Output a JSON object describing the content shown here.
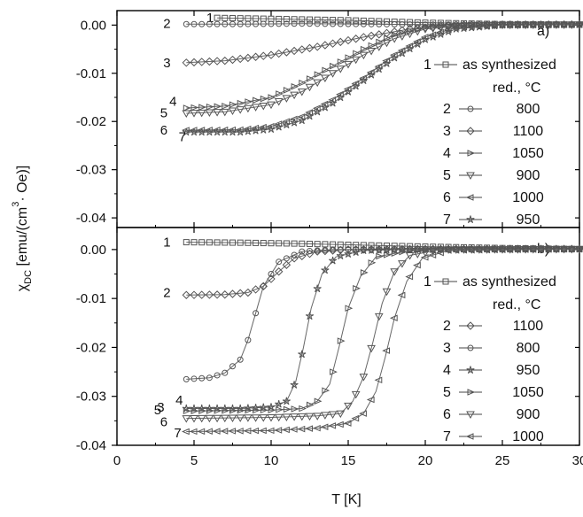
{
  "chart_data": [
    {
      "panel": "a)",
      "type": "line",
      "xlim": [
        0,
        30
      ],
      "ylim": [
        -0.042,
        0.003
      ],
      "x_ticks": [
        "0",
        "5",
        "10",
        "15",
        "20",
        "25",
        "30"
      ],
      "y_ticks": [
        {
          "v": 0.0,
          "label": "0.00"
        },
        {
          "v": -0.01,
          "label": "-0.01"
        },
        {
          "v": -0.02,
          "label": "-0.02"
        },
        {
          "v": -0.03,
          "label": "-0.03"
        },
        {
          "v": -0.04,
          "label": "-0.04"
        }
      ],
      "legend_header": "red., °C",
      "legend": [
        {
          "num": "1",
          "label": "as synthesized",
          "marker": "square"
        },
        {
          "num": "2",
          "label": "800",
          "marker": "circle"
        },
        {
          "num": "3",
          "label": "1100",
          "marker": "diamond"
        },
        {
          "num": "4",
          "label": "1050",
          "marker": "tri-right"
        },
        {
          "num": "5",
          "label": "900",
          "marker": "tri-down"
        },
        {
          "num": "6",
          "label": "1000",
          "marker": "tri-left"
        },
        {
          "num": "7",
          "label": "950",
          "marker": "star"
        }
      ],
      "series": [
        {
          "name": "1",
          "marker": "square",
          "label_at": [
            5.8,
            0.0015
          ],
          "points": [
            [
              6.5,
              0.0015
            ],
            [
              10,
              0.0013
            ],
            [
              15,
              0.001
            ],
            [
              20,
              0.0005
            ],
            [
              25,
              0.0002
            ],
            [
              30,
              0.0001
            ]
          ]
        },
        {
          "name": "2",
          "marker": "circle",
          "label_at": [
            3.0,
            0.0003
          ],
          "points": [
            [
              4.5,
              0.0002
            ],
            [
              8,
              0.0002
            ],
            [
              12,
              0.0003
            ],
            [
              16,
              0.0002
            ],
            [
              20,
              0.0001
            ],
            [
              25,
              0.0001
            ],
            [
              30,
              0.0001
            ]
          ]
        },
        {
          "name": "3",
          "marker": "diamond",
          "label_at": [
            3.0,
            -0.0078
          ],
          "points": [
            [
              4.5,
              -0.0078
            ],
            [
              7,
              -0.0074
            ],
            [
              10,
              -0.0062
            ],
            [
              13,
              -0.0045
            ],
            [
              16,
              -0.0025
            ],
            [
              19,
              -0.0008
            ],
            [
              22,
              0.0
            ],
            [
              25,
              0.0001
            ],
            [
              30,
              0.0001
            ]
          ]
        },
        {
          "name": "4",
          "marker": "tri-right",
          "label_at": [
            3.4,
            -0.0158
          ],
          "points": [
            [
              4.5,
              -0.0172
            ],
            [
              7,
              -0.0168
            ],
            [
              10,
              -0.015
            ],
            [
              12,
              -0.012
            ],
            [
              14,
              -0.0085
            ],
            [
              16,
              -0.005
            ],
            [
              18,
              -0.002
            ],
            [
              20,
              -0.0004
            ],
            [
              23,
              0.0
            ],
            [
              30,
              0.0001
            ]
          ]
        },
        {
          "name": "5",
          "marker": "tri-down",
          "label_at": [
            2.8,
            -0.0182
          ],
          "points": [
            [
              4.5,
              -0.0183
            ],
            [
              7,
              -0.018
            ],
            [
              10,
              -0.0165
            ],
            [
              12,
              -0.0138
            ],
            [
              14,
              -0.01
            ],
            [
              16,
              -0.0062
            ],
            [
              18,
              -0.0028
            ],
            [
              20,
              -0.0008
            ],
            [
              23,
              0.0
            ],
            [
              30,
              0.0001
            ]
          ]
        },
        {
          "name": "6",
          "marker": "tri-left",
          "label_at": [
            2.8,
            -0.0218
          ],
          "points": [
            [
              4.5,
              -0.0218
            ],
            [
              8,
              -0.0217
            ],
            [
              10,
              -0.021
            ],
            [
              12,
              -0.019
            ],
            [
              14,
              -0.0155
            ],
            [
              16,
              -0.011
            ],
            [
              18,
              -0.0062
            ],
            [
              20,
              -0.0025
            ],
            [
              22,
              -0.0005
            ],
            [
              25,
              0.0
            ],
            [
              30,
              0.0001
            ]
          ]
        },
        {
          "name": "7",
          "marker": "star",
          "label_at": [
            4.0,
            -0.0232
          ],
          "points": [
            [
              4.5,
              -0.0222
            ],
            [
              8,
              -0.0222
            ],
            [
              10,
              -0.0216
            ],
            [
              12,
              -0.0198
            ],
            [
              14,
              -0.0162
            ],
            [
              16,
              -0.0115
            ],
            [
              18,
              -0.0068
            ],
            [
              20,
              -0.003
            ],
            [
              22,
              -0.0008
            ],
            [
              25,
              0.0
            ],
            [
              30,
              0.0001
            ]
          ]
        }
      ]
    },
    {
      "panel": "b)",
      "type": "line",
      "xlim": [
        0,
        30
      ],
      "ylim": [
        -0.04,
        0.0045
      ],
      "x_ticks": [
        "0",
        "5",
        "10",
        "15",
        "20",
        "25",
        "30"
      ],
      "y_ticks": [
        {
          "v": 0.0,
          "label": "0.00"
        },
        {
          "v": -0.01,
          "label": "-0.01"
        },
        {
          "v": -0.02,
          "label": "-0.02"
        },
        {
          "v": -0.03,
          "label": "-0.03"
        },
        {
          "v": -0.04,
          "label": "-0.04"
        }
      ],
      "legend_header": "red., °C",
      "legend": [
        {
          "num": "1",
          "label": "as synthesized",
          "marker": "square"
        },
        {
          "num": "2",
          "label": "1100",
          "marker": "diamond"
        },
        {
          "num": "3",
          "label": "800",
          "marker": "circle"
        },
        {
          "num": "4",
          "label": "950",
          "marker": "star"
        },
        {
          "num": "5",
          "label": "1050",
          "marker": "tri-right"
        },
        {
          "num": "6",
          "label": "900",
          "marker": "tri-down"
        },
        {
          "num": "7",
          "label": "1000",
          "marker": "tri-left"
        }
      ],
      "series": [
        {
          "name": "1",
          "marker": "square",
          "label_at": [
            3.0,
            0.0015
          ],
          "points": [
            [
              4.5,
              0.0015
            ],
            [
              8,
              0.0014
            ],
            [
              12,
              0.0012
            ],
            [
              16,
              0.0009
            ],
            [
              20,
              0.0006
            ],
            [
              25,
              0.0003
            ],
            [
              30,
              0.0001
            ]
          ]
        },
        {
          "name": "2",
          "marker": "diamond",
          "label_at": [
            3.0,
            -0.0088
          ],
          "points": [
            [
              4.5,
              -0.0093
            ],
            [
              7,
              -0.0092
            ],
            [
              8.5,
              -0.0088
            ],
            [
              9.5,
              -0.0075
            ],
            [
              10.5,
              -0.0045
            ],
            [
              11.5,
              -0.0018
            ],
            [
              13,
              -0.0004
            ],
            [
              15,
              0.0
            ],
            [
              20,
              0.0001
            ],
            [
              30,
              0.0001
            ]
          ]
        },
        {
          "name": "3",
          "marker": "circle",
          "label_at": [
            2.6,
            -0.0322
          ],
          "points": [
            [
              4.5,
              -0.0265
            ],
            [
              6,
              -0.0262
            ],
            [
              7,
              -0.0252
            ],
            [
              8,
              -0.0225
            ],
            [
              8.5,
              -0.0185
            ],
            [
              9,
              -0.013
            ],
            [
              9.5,
              -0.0075
            ],
            [
              10.5,
              -0.0025
            ],
            [
              12,
              -0.0004
            ],
            [
              14,
              0.0
            ],
            [
              20,
              0.0001
            ],
            [
              30,
              0.0001
            ]
          ]
        },
        {
          "name": "4",
          "marker": "star",
          "label_at": [
            3.8,
            -0.0308
          ],
          "points": [
            [
              4.5,
              -0.0325
            ],
            [
              8,
              -0.0325
            ],
            [
              10,
              -0.0322
            ],
            [
              11,
              -0.031
            ],
            [
              11.6,
              -0.027
            ],
            [
              12.1,
              -0.02
            ],
            [
              12.6,
              -0.012
            ],
            [
              13.3,
              -0.005
            ],
            [
              14.2,
              -0.0015
            ],
            [
              16,
              -0.0002
            ],
            [
              20,
              0.0001
            ],
            [
              30,
              0.0001
            ]
          ]
        },
        {
          "name": "5",
          "marker": "tri-right",
          "label_at": [
            2.4,
            -0.0328
          ],
          "points": [
            [
              4.5,
              -0.033
            ],
            [
              10,
              -0.0328
            ],
            [
              12,
              -0.0325
            ],
            [
              13,
              -0.031
            ],
            [
              13.8,
              -0.0275
            ],
            [
              14.4,
              -0.02
            ],
            [
              15,
              -0.012
            ],
            [
              15.8,
              -0.0055
            ],
            [
              16.8,
              -0.0015
            ],
            [
              19,
              -0.0002
            ],
            [
              22,
              0.0001
            ],
            [
              30,
              0.0001
            ]
          ]
        },
        {
          "name": "6",
          "marker": "tri-down",
          "label_at": [
            2.8,
            -0.0352
          ],
          "points": [
            [
              4.5,
              -0.0345
            ],
            [
              10,
              -0.0343
            ],
            [
              13,
              -0.034
            ],
            [
              14.5,
              -0.0335
            ],
            [
              15.3,
              -0.031
            ],
            [
              16,
              -0.026
            ],
            [
              16.6,
              -0.019
            ],
            [
              17.2,
              -0.011
            ],
            [
              18,
              -0.0045
            ],
            [
              19,
              -0.0012
            ],
            [
              21,
              0.0
            ],
            [
              30,
              0.0001
            ]
          ]
        },
        {
          "name": "7",
          "marker": "tri-left",
          "label_at": [
            3.7,
            -0.0375
          ],
          "points": [
            [
              4.5,
              -0.0372
            ],
            [
              10,
              -0.037
            ],
            [
              13,
              -0.0365
            ],
            [
              15,
              -0.0355
            ],
            [
              16,
              -0.0335
            ],
            [
              16.8,
              -0.029
            ],
            [
              17.4,
              -0.022
            ],
            [
              18,
              -0.014
            ],
            [
              18.8,
              -0.0065
            ],
            [
              19.8,
              -0.0018
            ],
            [
              21.5,
              -0.0002
            ],
            [
              30,
              0.0001
            ]
          ]
        }
      ]
    }
  ],
  "x_axis_title": "T [K]",
  "y_axis_title": "χ",
  "y_axis_title_sub": "DC",
  "y_axis_title_rest": " [emu/(cm",
  "y_axis_title_sup": "3",
  "y_axis_title_end": "· Oe)]",
  "legend_num_prefix_dash": "—"
}
